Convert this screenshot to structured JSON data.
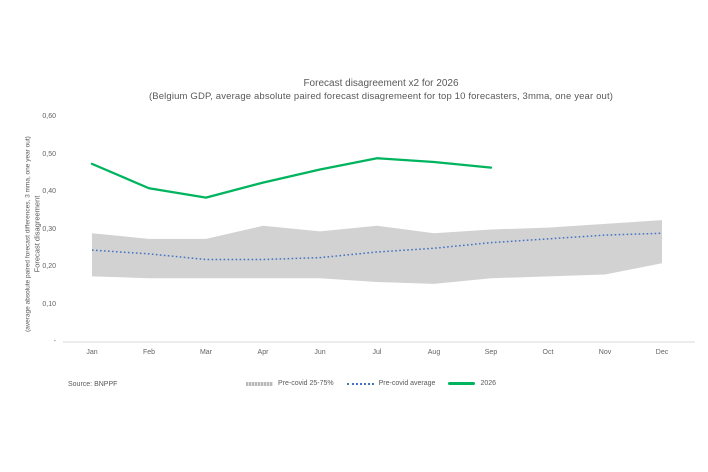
{
  "title": "Forecast disagreement x2 for 2026",
  "subtitle": "(Belgium GDP, average absolute paired forecast disagremeent for top 10 forecasters, 3mma, one year out)",
  "source": "Source: BNPPF",
  "y_axis": {
    "title": "Forecast disagreement",
    "title_sub": "(average absolute paired forecast differences, 3 mma, one year out)",
    "tick_labels": [
      "0,60",
      "0,50",
      "0,40",
      "0,30",
      "0,20",
      "0,10",
      "-"
    ],
    "tick_values": [
      0.6,
      0.5,
      0.4,
      0.3,
      0.2,
      0.1,
      0
    ]
  },
  "x_axis": {
    "labels": [
      "Jan",
      "Feb",
      "Mar",
      "Apr",
      "Jun",
      "Jul",
      "Aug",
      "Sep",
      "Oct",
      "Nov",
      "Dec"
    ]
  },
  "legend": [
    {
      "label": "Pre-covid 25-75%",
      "swatch": "band",
      "color": "#d2d2d2"
    },
    {
      "label": "Pre-covid average",
      "swatch": "dotted",
      "color": "#4472c4"
    },
    {
      "label": "2026",
      "swatch": "line",
      "color": "#00b45f"
    }
  ],
  "colors": {
    "band_fill": "#d2d2d2",
    "average_line": "#4472c4",
    "line_2026": "#00b45f",
    "axis_line": "#d9d9d9",
    "text": "#595959"
  },
  "chart_data": {
    "type": "line",
    "title": "Forecast disagreement x2 for 2026",
    "subtitle": "(Belgium GDP, average absolute paired forecast disagremeent for top 10 forecasters, 3mma, one year out)",
    "xlabel": "",
    "ylabel": "Forecast disagreement (average absolute paired forecast differences, 3 mma, one year out)",
    "ylim": [
      0,
      0.6
    ],
    "grid": false,
    "legend_position": "bottom",
    "categories": [
      "Jan",
      "Feb",
      "Mar",
      "Apr",
      "Jun",
      "Jul",
      "Aug",
      "Sep",
      "Oct",
      "Nov",
      "Dec"
    ],
    "series": [
      {
        "name": "Pre-covid 75th percentile (band top)",
        "role": "band-upper",
        "values": [
          0.29,
          0.275,
          0.275,
          0.31,
          0.295,
          0.31,
          0.29,
          0.3,
          0.305,
          0.315,
          0.325
        ]
      },
      {
        "name": "Pre-covid 25th percentile (band bottom)",
        "role": "band-lower",
        "values": [
          0.175,
          0.17,
          0.17,
          0.17,
          0.17,
          0.16,
          0.155,
          0.17,
          0.175,
          0.18,
          0.21
        ]
      },
      {
        "name": "Pre-covid average",
        "role": "dotted-line",
        "values": [
          0.245,
          0.235,
          0.22,
          0.22,
          0.225,
          0.24,
          0.25,
          0.265,
          0.275,
          0.285,
          0.29
        ]
      },
      {
        "name": "2026",
        "role": "solid-line",
        "values": [
          0.475,
          0.41,
          0.385,
          0.425,
          0.46,
          0.49,
          0.48,
          0.465,
          null,
          null,
          null
        ]
      }
    ]
  }
}
